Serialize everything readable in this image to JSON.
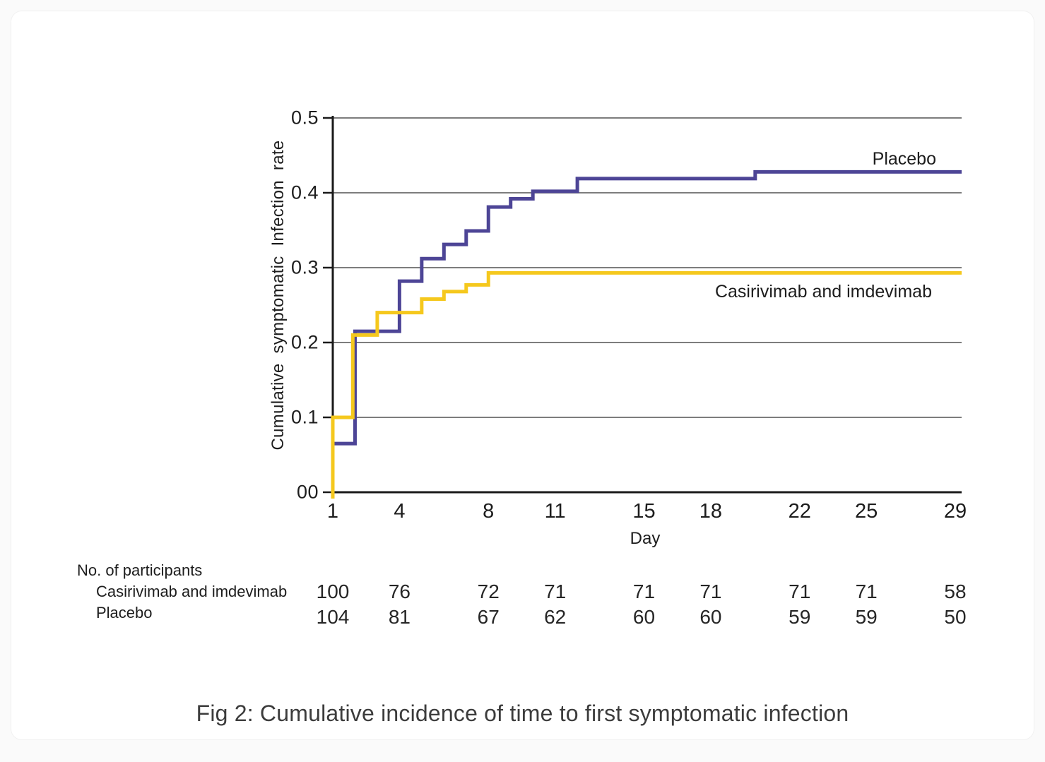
{
  "figure": {
    "caption": "Fig 2: Cumulative incidence of time to first symptomatic infection"
  },
  "participants_table": {
    "header": "No. of participants",
    "rows": [
      {
        "label": "Casirivimab and imdevimab",
        "values": [
          100,
          76,
          72,
          71,
          71,
          71,
          71,
          71,
          58
        ]
      },
      {
        "label": "Placebo",
        "values": [
          104,
          81,
          67,
          62,
          60,
          60,
          59,
          59,
          50
        ]
      }
    ]
  },
  "chart_data": {
    "type": "line",
    "subtype": "step-kaplan-meier",
    "title": "",
    "xlabel": "Day",
    "ylabel": "Cumulative symptomatic Infection rate",
    "xlim": [
      1,
      29
    ],
    "ylim": [
      0,
      0.5
    ],
    "x_ticks": [
      1,
      4,
      8,
      11,
      15,
      18,
      22,
      25,
      29
    ],
    "y_ticks": [
      {
        "value": 0.5,
        "label": "0.5"
      },
      {
        "value": 0.4,
        "label": "0.4"
      },
      {
        "value": 0.3,
        "label": "0.3"
      },
      {
        "value": 0.2,
        "label": "0.2"
      },
      {
        "value": 0.1,
        "label": "0.1"
      },
      {
        "value": 0.0,
        "label": "00"
      }
    ],
    "grid": "horizontal",
    "legend_position": "inline-right",
    "colors": {
      "placebo": "#4D4596",
      "casirivimab": "#F5C81D",
      "gridline": "#7d7d7d",
      "axis": "#1a1a1a"
    },
    "series": [
      {
        "name": "Placebo",
        "color": "#4D4596",
        "start": {
          "x": 1,
          "y": 0.065
        },
        "steps": [
          [
            2,
            0.215
          ],
          [
            4,
            0.282
          ],
          [
            5,
            0.312
          ],
          [
            6,
            0.331
          ],
          [
            7,
            0.349
          ],
          [
            8,
            0.381
          ],
          [
            9,
            0.392
          ],
          [
            10,
            0.402
          ],
          [
            12,
            0.419
          ],
          [
            20,
            0.428
          ]
        ]
      },
      {
        "name": "Casirivimab and imdevimab",
        "color": "#F5C81D",
        "start": {
          "x": 1,
          "y": 0.0
        },
        "steps": [
          [
            1,
            0.1
          ],
          [
            1.9,
            0.21
          ],
          [
            3,
            0.24
          ],
          [
            5,
            0.258
          ],
          [
            6,
            0.268
          ],
          [
            7,
            0.277
          ],
          [
            8,
            0.293
          ]
        ]
      }
    ]
  }
}
